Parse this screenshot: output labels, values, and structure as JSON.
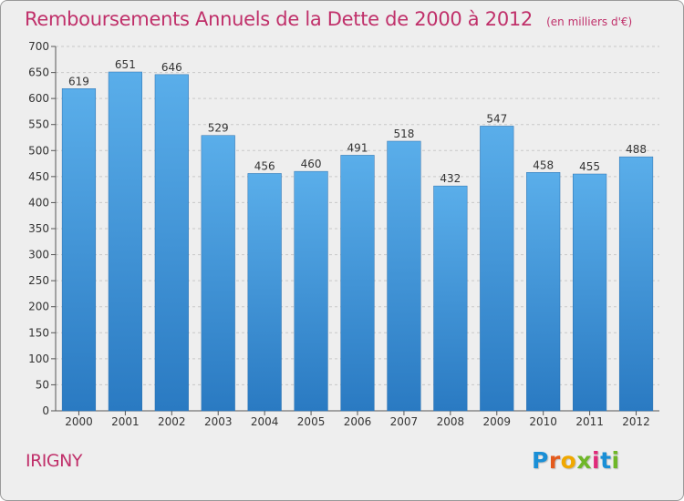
{
  "header": {
    "title": "Remboursements Annuels de la Dette de 2000 à 2012",
    "subtitle": "(en milliers d'€)"
  },
  "footer": {
    "city": "IRIGNY",
    "brand": "Proxiti"
  },
  "colors": {
    "title": "#c0306a",
    "bar_top": "#5aaeea",
    "bar_bottom": "#2a7ac2",
    "logo_letters": [
      "#1a8fd6",
      "#e45a1c",
      "#f0a800",
      "#6fb728",
      "#e02a7a",
      "#1a8fd6",
      "#6fb728"
    ]
  },
  "chart_data": {
    "type": "bar",
    "title": "Remboursements Annuels de la Dette de 2000 à 2012",
    "subtitle": "(en milliers d'€)",
    "xlabel": "",
    "ylabel": "",
    "categories": [
      "2000",
      "2001",
      "2002",
      "2003",
      "2004",
      "2005",
      "2006",
      "2007",
      "2008",
      "2009",
      "2010",
      "2011",
      "2012"
    ],
    "values": [
      619,
      651,
      646,
      529,
      456,
      460,
      491,
      518,
      432,
      547,
      458,
      455,
      488
    ],
    "ylim": [
      0,
      700
    ],
    "yticks": [
      0,
      50,
      100,
      150,
      200,
      250,
      300,
      350,
      400,
      450,
      500,
      550,
      600,
      650,
      700
    ],
    "grid": true,
    "data_labels": true
  }
}
